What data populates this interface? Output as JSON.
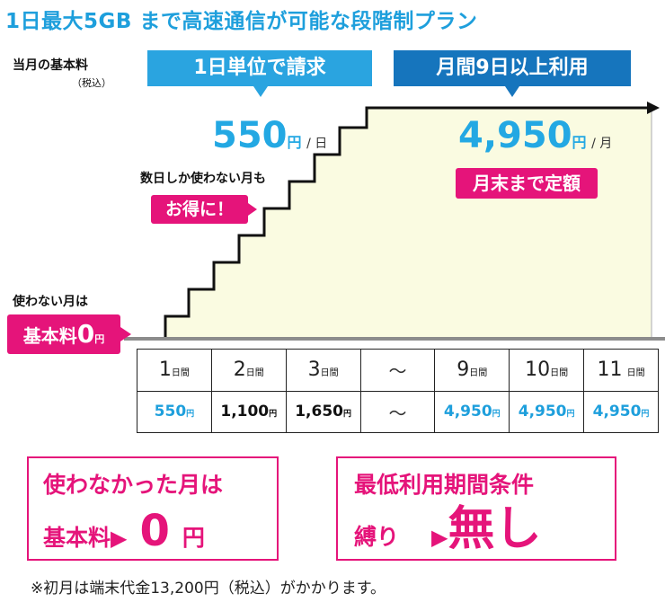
{
  "title": "1日最大5GB まで高速通信が可能な段階制プラン",
  "y_axis": {
    "label": "当月の基本料",
    "note": "（税込）"
  },
  "callouts": {
    "daily": "1日単位で請求",
    "monthly": "月間9日以上利用"
  },
  "daily_price": {
    "amount": "550",
    "unit": "円",
    "per": "/ 日"
  },
  "monthly_price": {
    "amount": "4,950",
    "unit": "円",
    "per": "/ 月"
  },
  "fixed_badge": "月末まで定額",
  "few_days": {
    "text": "数日しか使わない月も",
    "badge": "お得に！"
  },
  "unused": {
    "label": "使わない月は",
    "basic": "基本料",
    "zero": "0",
    "unit": "円"
  },
  "table": {
    "days": [
      {
        "num": "1",
        "suffix": "日間"
      },
      {
        "num": "2",
        "suffix": "日間"
      },
      {
        "num": "3",
        "suffix": "日間"
      },
      {
        "num": "～",
        "suffix": ""
      },
      {
        "num": "9",
        "suffix": "日間"
      },
      {
        "num": "10",
        "suffix": "日間"
      },
      {
        "num": "11",
        "suffix": "日間"
      }
    ],
    "prices": [
      {
        "value": "550",
        "suffix": "円",
        "blue": true
      },
      {
        "value": "1,100",
        "suffix": "円",
        "blue": false
      },
      {
        "value": "1,650",
        "suffix": "円",
        "blue": false
      },
      {
        "value": "～",
        "suffix": "",
        "blue": false
      },
      {
        "value": "4,950",
        "suffix": "円",
        "blue": true
      },
      {
        "value": "4,950",
        "suffix": "円",
        "blue": true
      },
      {
        "value": "4,950",
        "suffix": "円",
        "blue": true
      }
    ]
  },
  "box1": {
    "line1": "使わなかった月は",
    "line2a": "基本料",
    "arrow": "▶",
    "zero": "0",
    "unit": "円"
  },
  "box2": {
    "line1": "最低利用期間条件",
    "line2a": "縛り",
    "arrow": "▶",
    "nothing": "無し"
  },
  "footnote": "※初月は端末代金13,200円（税込）がかかります。",
  "colors": {
    "blue": "#1e9fdc",
    "dark_blue": "#1675bd",
    "pink": "#e5147a",
    "fill": "#fafbe1"
  }
}
